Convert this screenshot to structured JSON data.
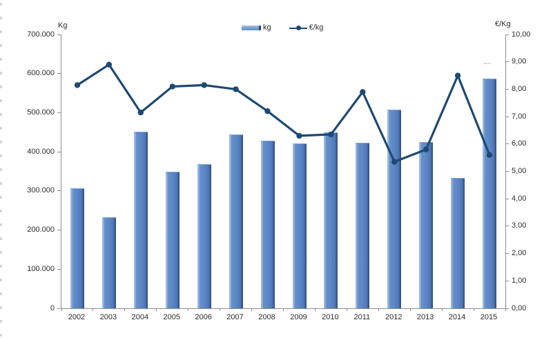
{
  "chart_data": {
    "type": "bar",
    "subtype": "bar+line-dual-axis",
    "categories": [
      "2002",
      "2003",
      "2004",
      "2005",
      "2006",
      "2007",
      "2008",
      "2009",
      "2010",
      "2011",
      "2012",
      "2013",
      "2014",
      "2015"
    ],
    "series": [
      {
        "name": "kg",
        "type": "bar",
        "axis": "left",
        "color": "#5b87c5",
        "values": [
          305000,
          231000,
          450000,
          348000,
          367000,
          442000,
          427000,
          419000,
          448000,
          421000,
          506000,
          423000,
          332000,
          586000
        ]
      },
      {
        "name": "€/kg",
        "type": "line",
        "axis": "right",
        "color": "#1d4975",
        "values": [
          8.15,
          8.9,
          7.15,
          8.1,
          8.15,
          8.0,
          7.2,
          6.3,
          6.35,
          7.9,
          5.35,
          5.8,
          8.5,
          5.6
        ]
      }
    ],
    "y_left": {
      "title": "Kg",
      "min": 0,
      "max": 700000,
      "tick_step": 100000,
      "tick_labels": [
        "700.000",
        "600.000",
        "500.000",
        "400.000",
        "300.000",
        "200.000",
        "100.000",
        "0"
      ]
    },
    "y_right": {
      "title": "€/Kg",
      "min": 0,
      "max": 10,
      "tick_step": 1,
      "tick_labels": [
        "10,00",
        "9,00",
        "8,00",
        "7,00",
        "6,00",
        "5,00",
        "4,00",
        "3,00",
        "2,00",
        "1,00",
        "0,00"
      ]
    },
    "legend": {
      "position": "top-center",
      "items": [
        {
          "label": "kg",
          "marker": "bar"
        },
        {
          "label": "€/kg",
          "marker": "line-dot"
        }
      ]
    },
    "grid": false,
    "background": "#ffffff",
    "axis_color": "#8c8c8c"
  }
}
